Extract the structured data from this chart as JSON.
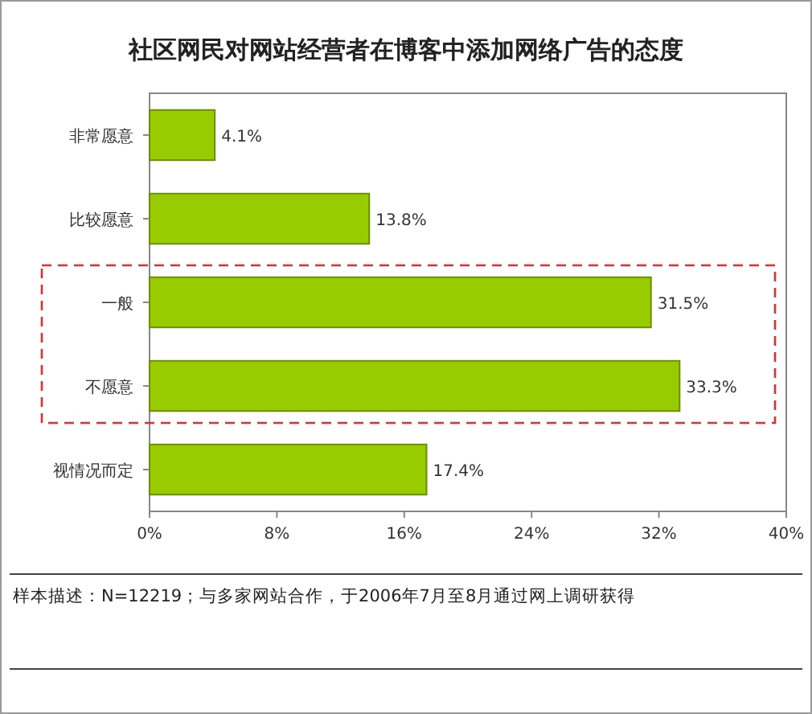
{
  "chart_data": {
    "type": "bar",
    "orientation": "horizontal",
    "title": "社区网民对网站经营者在博客中添加网络广告的态度",
    "categories": [
      "非常愿意",
      "比较愿意",
      "一般",
      "不愿意",
      "视情况而定"
    ],
    "values": [
      4.1,
      13.8,
      31.5,
      33.3,
      17.4
    ],
    "value_labels": [
      "4.1%",
      "13.8%",
      "31.5%",
      "33.3%",
      "17.4%"
    ],
    "color": "#99cc00",
    "xlim": [
      0,
      40
    ],
    "xticks": [
      {
        "value": 0,
        "label": "0%"
      },
      {
        "value": 8,
        "label": "8%"
      },
      {
        "value": 16,
        "label": "16%"
      },
      {
        "value": 24,
        "label": "24%"
      },
      {
        "value": 32,
        "label": "32%"
      },
      {
        "value": 40,
        "label": "40%"
      }
    ],
    "grid": false,
    "annotations": [
      "样本描述：N=12219；与多家网站合作，于2006年7月至8月通过网上调研获得"
    ]
  }
}
